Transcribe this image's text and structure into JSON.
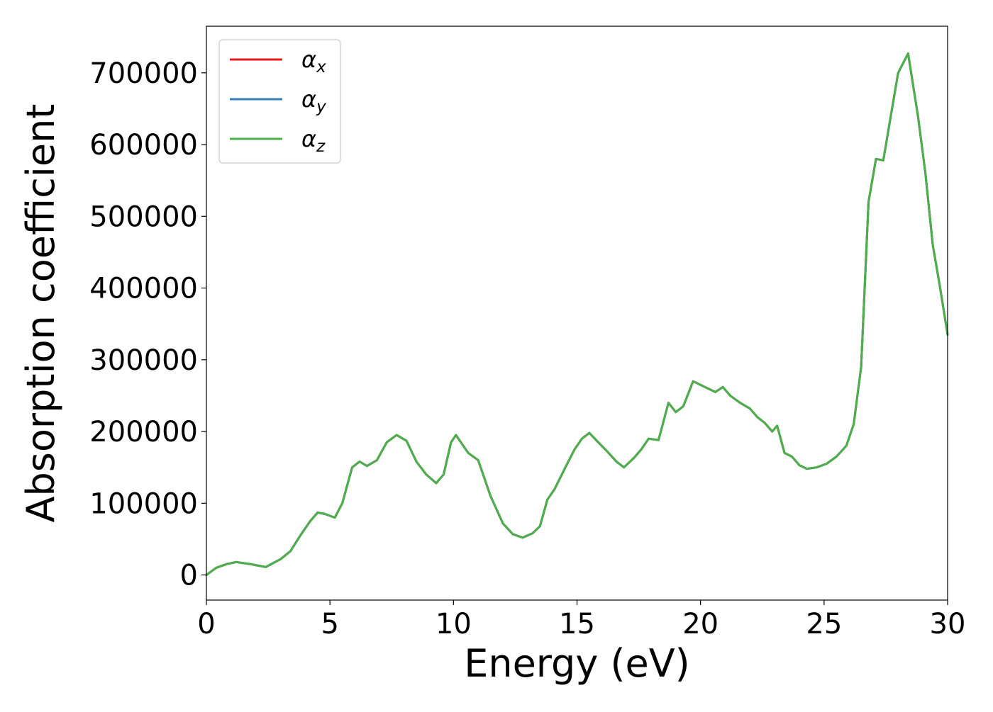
{
  "chart_data": {
    "type": "line",
    "xlabel": "Energy (eV)",
    "ylabel": "Absorption coefficient",
    "xlim": [
      0,
      30
    ],
    "ylim": [
      -35000,
      765000
    ],
    "xticks": [
      0,
      5,
      10,
      15,
      20,
      25,
      30
    ],
    "xtick_labels": [
      "0",
      "5",
      "10",
      "15",
      "20",
      "25",
      "30"
    ],
    "yticks": [
      0,
      100000,
      200000,
      300000,
      400000,
      500000,
      600000,
      700000
    ],
    "ytick_labels": [
      "0",
      "100000",
      "200000",
      "300000",
      "400000",
      "500000",
      "600000",
      "700000"
    ],
    "grid": false,
    "legend_position": "upper-left",
    "series": [
      {
        "name": "αx",
        "symbol": "α",
        "subscript": "x",
        "color": "#e41a1c"
      },
      {
        "name": "αy",
        "symbol": "α",
        "subscript": "y",
        "color": "#377eb8"
      },
      {
        "name": "αz",
        "symbol": "α",
        "subscript": "z",
        "color": "#4daf4a"
      }
    ],
    "x": [
      0,
      0.4,
      0.8,
      1.2,
      1.8,
      2.4,
      3.0,
      3.4,
      3.8,
      4.2,
      4.5,
      4.8,
      5.2,
      5.5,
      5.9,
      6.2,
      6.5,
      6.9,
      7.3,
      7.7,
      8.1,
      8.5,
      8.9,
      9.3,
      9.6,
      9.9,
      10.1,
      10.3,
      10.6,
      11.0,
      11.5,
      12.0,
      12.4,
      12.8,
      13.2,
      13.5,
      13.8,
      14.1,
      14.5,
      14.9,
      15.2,
      15.5,
      15.8,
      16.2,
      16.6,
      16.9,
      17.3,
      17.6,
      17.9,
      18.3,
      18.7,
      19.0,
      19.3,
      19.7,
      20.0,
      20.3,
      20.6,
      20.9,
      21.2,
      21.6,
      22.0,
      22.3,
      22.6,
      22.9,
      23.1,
      23.4,
      23.7,
      24.0,
      24.3,
      24.7,
      25.1,
      25.5,
      25.9,
      26.2,
      26.5,
      26.8,
      27.1,
      27.4,
      27.7,
      28.0,
      28.4,
      28.8,
      29.1,
      29.4,
      29.7,
      30.0
    ],
    "values": [
      0,
      10000,
      15000,
      18000,
      15000,
      11000,
      22000,
      33000,
      55000,
      75000,
      87000,
      85000,
      80000,
      100000,
      150000,
      158000,
      152000,
      160000,
      185000,
      195000,
      187000,
      158000,
      140000,
      128000,
      140000,
      185000,
      195000,
      185000,
      170000,
      160000,
      110000,
      72000,
      57000,
      52000,
      58000,
      68000,
      105000,
      120000,
      148000,
      175000,
      190000,
      198000,
      187000,
      173000,
      158000,
      150000,
      163000,
      175000,
      190000,
      188000,
      240000,
      227000,
      235000,
      270000,
      265000,
      260000,
      255000,
      262000,
      250000,
      240000,
      232000,
      220000,
      212000,
      200000,
      208000,
      170000,
      165000,
      153000,
      148000,
      150000,
      155000,
      165000,
      180000,
      210000,
      290000,
      520000,
      580000,
      578000,
      640000,
      700000,
      727000,
      640000,
      560000,
      460000,
      400000,
      335000
    ]
  }
}
